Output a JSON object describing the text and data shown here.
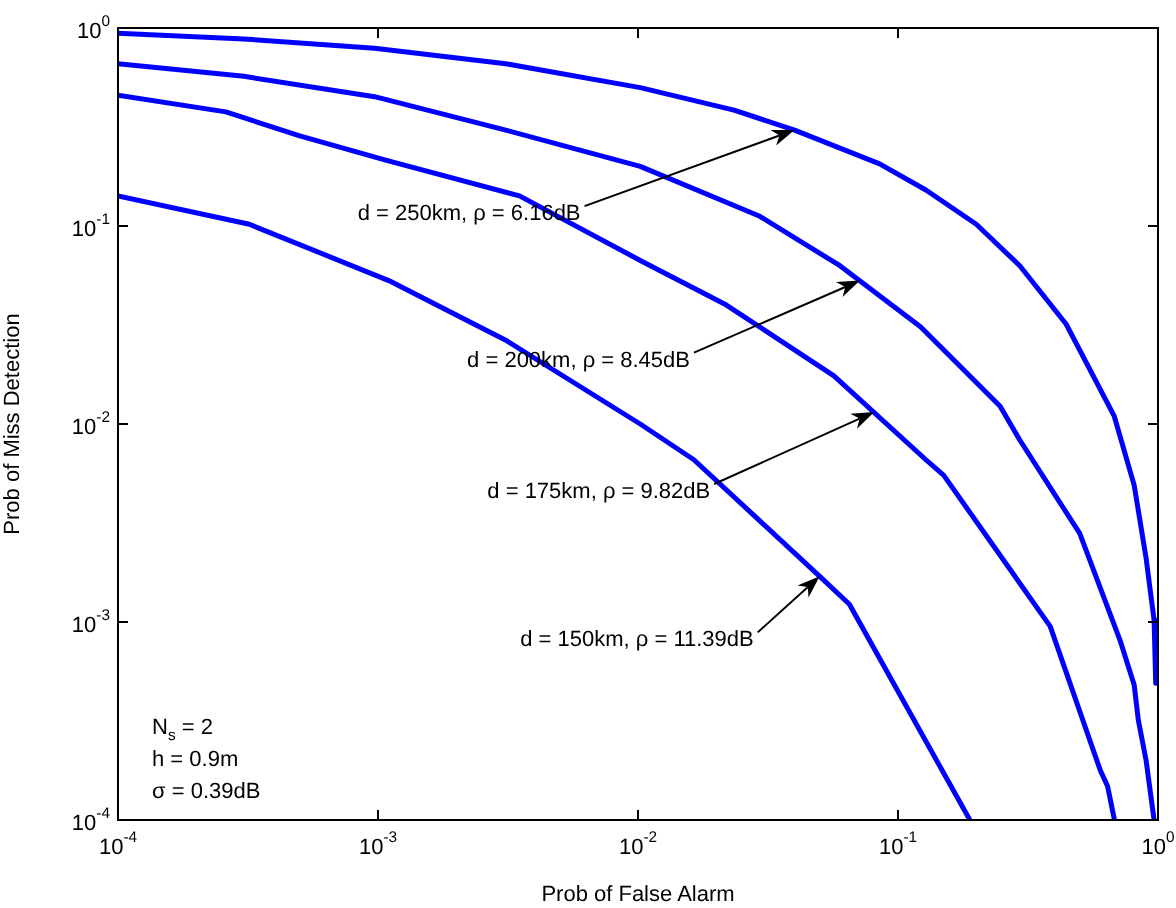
{
  "chart_data": {
    "type": "line",
    "xlabel": "Prob of False Alarm",
    "ylabel": "Prob of Miss Detection",
    "log": "xy",
    "xlim": [
      0.0001,
      1
    ],
    "ylim": [
      0.0001,
      1
    ],
    "xticks": [
      {
        "value": 0.0001,
        "label": "10$^{-4}$"
      },
      {
        "value": 0.001,
        "label": "10$^{-3}$"
      },
      {
        "value": 0.01,
        "label": "10$^{-2}$"
      },
      {
        "value": 0.1,
        "label": "10$^{-1}$"
      },
      {
        "value": 1,
        "label": "10$^{0}$"
      }
    ],
    "yticks": [
      {
        "value": 0.0001,
        "label": "10$^{-4}$"
      },
      {
        "value": 0.001,
        "label": "10$^{-3}$"
      },
      {
        "value": 0.01,
        "label": "10$^{-2}$"
      },
      {
        "value": 0.1,
        "label": "10$^{-1}$"
      },
      {
        "value": 1,
        "label": "10$^{0}$"
      }
    ],
    "grid": false,
    "legend": false,
    "marker": "none",
    "line_style": "solid",
    "series": [
      {
        "color": "#0000ff",
        "x": [
          0.0001,
          0.000305,
          0.00097,
          0.0031,
          0.0102,
          0.0234,
          0.04,
          0.085,
          0.128,
          0.2,
          0.294,
          0.443,
          0.678,
          0.81,
          0.9,
          0.966,
          0.98
        ],
        "values": [
          0.94,
          0.88,
          0.79,
          0.66,
          0.5,
          0.385,
          0.305,
          0.206,
          0.152,
          0.102,
          0.063,
          0.032,
          0.011,
          0.0049,
          0.0021,
          0.00102,
          0.00049
        ]
      },
      {
        "color": "#0000ff",
        "x": [
          0.0001,
          0.000305,
          0.00097,
          0.0031,
          0.0102,
          0.0294,
          0.0598,
          0.122,
          0.247,
          0.294,
          0.5,
          0.714,
          0.81,
          0.84,
          0.9,
          0.966
        ],
        "values": [
          0.66,
          0.57,
          0.45,
          0.305,
          0.2,
          0.112,
          0.063,
          0.031,
          0.0123,
          0.0083,
          0.0028,
          0.00081,
          0.00048,
          0.00032,
          0.0002,
          0.0001
        ]
      },
      {
        "color": "#0000ff",
        "x": [
          0.0001,
          0.00026,
          0.0005,
          0.00107,
          0.0035,
          0.0102,
          0.0218,
          0.0567,
          0.128,
          0.15,
          0.385,
          0.6,
          0.64,
          0.68
        ],
        "values": [
          0.457,
          0.377,
          0.285,
          0.215,
          0.142,
          0.067,
          0.04,
          0.0175,
          0.0066,
          0.0055,
          0.00095,
          0.000178,
          0.000148,
          0.0001
        ]
      },
      {
        "color": "#0000ff",
        "x": [
          0.0001,
          0.00032,
          0.0011,
          0.0031,
          0.0102,
          0.0164,
          0.05,
          0.065,
          0.189
        ],
        "values": [
          0.142,
          0.102,
          0.053,
          0.0265,
          0.01,
          0.0066,
          0.0017,
          0.00123,
          0.0001
        ]
      }
    ],
    "annotations": [
      {
        "text": "d = 250km, ρ = 6.16dB",
        "x": 0.04,
        "y": 0.305
      },
      {
        "text": "d = 200km, ρ = 8.45dB",
        "x": 0.0714,
        "y": 0.053
      },
      {
        "text": "d = 175km, ρ = 9.82dB",
        "x": 0.081,
        "y": 0.0115
      },
      {
        "text": "d = 150km, ρ = 11.39dB",
        "x": 0.05,
        "y": 0.0017
      },
      "N$_{s}$ = 2",
      "h = 0.9m",
      "σ = 0.39dB"
    ]
  }
}
